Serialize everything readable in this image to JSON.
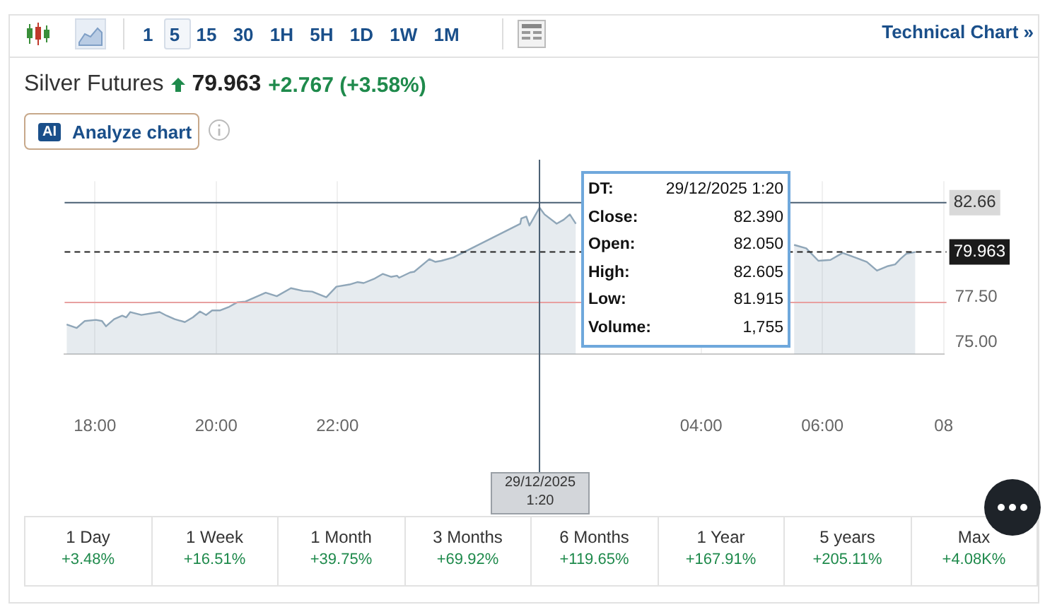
{
  "chart_data": {
    "type": "area",
    "title": "Silver Futures",
    "x": [
      "2025-12-28T17:32",
      "2025-12-28T17:42",
      "2025-12-28T17:50",
      "2025-12-28T18:01",
      "2025-12-28T18:07",
      "2025-12-28T18:11",
      "2025-12-28T18:19",
      "2025-12-28T18:27",
      "2025-12-28T18:31",
      "2025-12-28T18:35",
      "2025-12-28T18:46",
      "2025-12-28T19:04",
      "2025-12-28T19:11",
      "2025-12-28T19:19",
      "2025-12-28T19:29",
      "2025-12-28T19:37",
      "2025-12-28T19:44",
      "2025-12-28T19:50",
      "2025-12-28T19:56",
      "2025-12-28T20:04",
      "2025-12-28T20:13",
      "2025-12-28T20:21",
      "2025-12-28T20:29",
      "2025-12-28T20:37",
      "2025-12-28T20:49",
      "2025-12-28T21:00",
      "2025-12-28T21:14",
      "2025-12-28T21:26",
      "2025-12-28T21:35",
      "2025-12-28T21:49",
      "2025-12-28T21:59",
      "2025-12-28T22:12",
      "2025-12-28T22:20",
      "2025-12-28T22:26",
      "2025-12-28T22:37",
      "2025-12-28T22:45",
      "2025-12-28T22:53",
      "2025-12-28T22:59",
      "2025-12-28T23:01",
      "2025-12-28T23:12",
      "2025-12-28T23:16",
      "2025-12-28T23:26",
      "2025-12-28T23:31",
      "2025-12-28T23:37",
      "2025-12-28T23:43",
      "2025-12-28T23:55",
      "2025-12-29T01:01",
      "2025-12-29T01:02",
      "2025-12-29T01:07",
      "2025-12-29T01:10",
      "2025-12-29T01:14",
      "2025-12-29T01:20",
      "2025-12-29T01:25",
      "2025-12-29T01:37",
      "2025-12-29T01:44",
      "2025-12-29T01:50",
      "2025-12-29T01:56",
      "2025-12-29T02:23",
      "2025-12-29T02:56",
      "2025-12-29T03:30",
      "2025-12-29T05:32",
      "2025-12-29T05:44",
      "2025-12-29T05:56",
      "2025-12-29T06:08",
      "2025-12-29T06:20",
      "2025-12-29T06:32",
      "2025-12-29T06:44",
      "2025-12-29T06:54",
      "2025-12-29T07:05",
      "2025-12-29T07:12",
      "2025-12-29T07:17",
      "2025-12-29T07:23",
      "2025-12-29T07:32"
    ],
    "series": [
      {
        "color": "#8fa6b8",
        "values": [
          75.99,
          75.8,
          76.18,
          76.24,
          76.18,
          75.89,
          76.28,
          76.47,
          76.38,
          76.67,
          76.51,
          76.67,
          76.47,
          76.28,
          76.12,
          76.38,
          76.7,
          76.51,
          76.76,
          76.76,
          76.96,
          77.21,
          77.25,
          77.44,
          77.73,
          77.54,
          77.98,
          77.83,
          77.79,
          77.48,
          78.06,
          78.18,
          78.31,
          78.26,
          78.51,
          78.76,
          78.6,
          78.66,
          78.55,
          78.84,
          78.88,
          79.34,
          79.57,
          79.42,
          79.48,
          79.67,
          81.51,
          81.8,
          81.9,
          81.41,
          81.8,
          82.39,
          82.02,
          81.51,
          81.73,
          82.02,
          81.51,
          null,
          null,
          null,
          80.35,
          80.16,
          79.48,
          79.53,
          79.91,
          79.67,
          79.42,
          78.94,
          79.19,
          79.28,
          79.57,
          79.86,
          79.96
        ]
      }
    ],
    "xlim": [
      "2025-12-28T17:30",
      "2025-12-29T08:00"
    ],
    "xticks": [
      {
        "value": "2025-12-28T18:00",
        "label": "18:00"
      },
      {
        "value": "2025-12-28T20:00",
        "label": "20:00"
      },
      {
        "value": "2025-12-28T22:00",
        "label": "22:00"
      },
      {
        "value": "2025-12-29T04:00",
        "label": "04:00"
      },
      {
        "value": "2025-12-29T06:00",
        "label": "06:00"
      },
      {
        "value": "2025-12-29T08:00",
        "label": "08"
      }
    ],
    "ylim": [
      74.36,
      83.84
    ],
    "yticks": [
      {
        "value": 75,
        "label": "75.00"
      },
      {
        "value": 77.5,
        "label": "77.50"
      }
    ],
    "grid": "x",
    "marker": "none",
    "ref_lines": [
      {
        "axis": "y",
        "value": 82.66,
        "label": "82.66",
        "color": "#4a5f73",
        "line_style": "solid"
      },
      {
        "axis": "y",
        "value": 79.963,
        "label": "79.963",
        "color": "#222222",
        "line_style": "dashed"
      },
      {
        "axis": "y",
        "value": 77.196,
        "color": "#e8a0a0",
        "line_style": "solid"
      },
      {
        "axis": "x",
        "value": "2025-12-29T01:20",
        "color": "#4a5f73",
        "line_style": "solid"
      }
    ],
    "annotations": [
      "1 5 15 30 1H 5H 1D 1W 1M",
      "Technical Chart »",
      "79.963",
      "+2.767 (+3.58%)",
      "AI",
      "Analyze chart",
      "DT:",
      "29/12/2025 1:20",
      "Close:",
      "82.390",
      "Open:",
      "82.050",
      "High:",
      "82.605",
      "Low:",
      "81.915",
      "Volume:",
      "1,755",
      "29/12/2025",
      "1:20",
      "1 Day",
      "+3.48%",
      "1 Week",
      "+16.51%",
      "1 Month",
      "+39.75%",
      "3 Months",
      "+69.92%",
      "6 Months",
      "+119.65%",
      "1 Year",
      "+167.91%",
      "5 years",
      "+205.11%",
      "Max",
      "+4.08K%"
    ]
  }
}
